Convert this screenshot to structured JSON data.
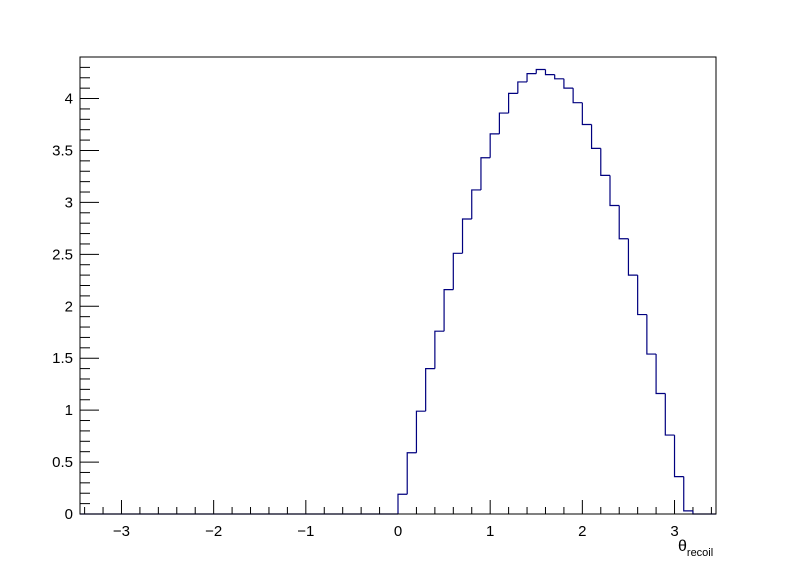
{
  "chart_data": {
    "type": "histogram",
    "title": "",
    "xlabel": {
      "symbol": "θ",
      "subscript": "recoil"
    },
    "ylabel": "",
    "xlim": [
      -3.45,
      3.45
    ],
    "ylim": [
      0,
      4.4
    ],
    "grid": false,
    "legend": "none",
    "colors": {
      "line": "#00007f",
      "frame": "#000000"
    },
    "x_ticks": [
      -3,
      -2,
      -1,
      0,
      1,
      2,
      3
    ],
    "x_tick_labels": [
      "−3",
      "−2",
      "−1",
      "0",
      "1",
      "2",
      "3"
    ],
    "y_ticks": [
      0,
      0.5,
      1,
      1.5,
      2,
      2.5,
      3,
      3.5,
      4
    ],
    "y_tick_labels": [
      "0",
      "0.5",
      "1",
      "1.5",
      "2",
      "2.5",
      "3",
      "3.5",
      "4"
    ],
    "bin_width": 0.1,
    "bins": [
      {
        "x0": -3.45,
        "y": 0
      },
      {
        "x0": 0.0,
        "y": 0.19
      },
      {
        "x0": 0.1,
        "y": 0.59
      },
      {
        "x0": 0.2,
        "y": 0.99
      },
      {
        "x0": 0.3,
        "y": 1.4
      },
      {
        "x0": 0.4,
        "y": 1.76
      },
      {
        "x0": 0.5,
        "y": 2.16
      },
      {
        "x0": 0.6,
        "y": 2.51
      },
      {
        "x0": 0.7,
        "y": 2.84
      },
      {
        "x0": 0.8,
        "y": 3.12
      },
      {
        "x0": 0.9,
        "y": 3.43
      },
      {
        "x0": 1.0,
        "y": 3.66
      },
      {
        "x0": 1.1,
        "y": 3.86
      },
      {
        "x0": 1.2,
        "y": 4.05
      },
      {
        "x0": 1.3,
        "y": 4.16
      },
      {
        "x0": 1.4,
        "y": 4.24
      },
      {
        "x0": 1.5,
        "y": 4.28
      },
      {
        "x0": 1.6,
        "y": 4.23
      },
      {
        "x0": 1.7,
        "y": 4.19
      },
      {
        "x0": 1.8,
        "y": 4.1
      },
      {
        "x0": 1.9,
        "y": 3.96
      },
      {
        "x0": 2.0,
        "y": 3.75
      },
      {
        "x0": 2.1,
        "y": 3.52
      },
      {
        "x0": 2.2,
        "y": 3.26
      },
      {
        "x0": 2.3,
        "y": 2.97
      },
      {
        "x0": 2.4,
        "y": 2.65
      },
      {
        "x0": 2.5,
        "y": 2.3
      },
      {
        "x0": 2.6,
        "y": 1.92
      },
      {
        "x0": 2.7,
        "y": 1.54
      },
      {
        "x0": 2.8,
        "y": 1.16
      },
      {
        "x0": 2.9,
        "y": 0.76
      },
      {
        "x0": 3.0,
        "y": 0.36
      },
      {
        "x0": 3.1,
        "y": 0.03
      },
      {
        "x0": 3.2,
        "y": 0
      }
    ]
  }
}
